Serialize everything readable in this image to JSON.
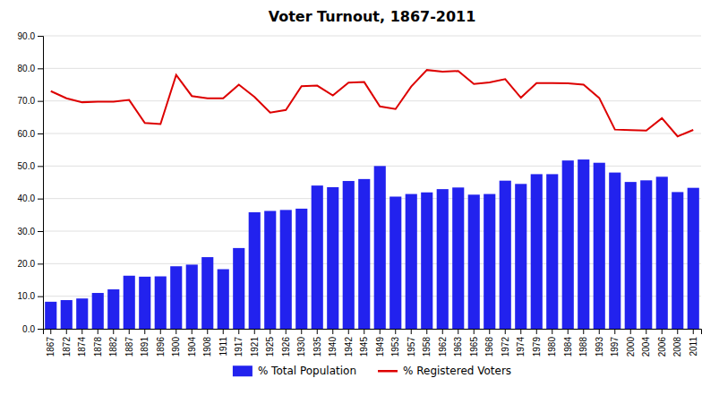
{
  "chart_data": {
    "type": "bar",
    "title": "Voter Turnout, 1867-2011",
    "categories": [
      "1867",
      "1872",
      "1874",
      "1878",
      "1882",
      "1887",
      "1891",
      "1896",
      "1900",
      "1904",
      "1908",
      "1911",
      "1917",
      "1921",
      "1925",
      "1926",
      "1930",
      "1935",
      "1940",
      "1942",
      "1945",
      "1949",
      "1953",
      "1957",
      "1958",
      "1962",
      "1963",
      "1965",
      "1968",
      "1972",
      "1974",
      "1979",
      "1980",
      "1984",
      "1988",
      "1993",
      "1997",
      "2000",
      "2004",
      "2006",
      "2008",
      "2011"
    ],
    "series": [
      {
        "name": "% Total Population",
        "type": "bar",
        "color": "#2222EE",
        "values": [
          8.3,
          8.8,
          9.3,
          11.0,
          12.1,
          16.3,
          16.0,
          16.1,
          19.2,
          19.7,
          22.0,
          18.3,
          24.8,
          35.8,
          36.2,
          36.5,
          36.9,
          44.0,
          43.5,
          45.4,
          46.0,
          50.0,
          40.6,
          41.4,
          41.9,
          42.9,
          43.4,
          41.2,
          41.4,
          45.5,
          44.5,
          47.5,
          47.5,
          51.7,
          52.0,
          51.0,
          48.0,
          45.1,
          45.6,
          46.7,
          42.0,
          43.3
        ]
      },
      {
        "name": "% Registered Voters",
        "type": "line",
        "color": "#DD0000",
        "values": [
          73.0,
          70.8,
          69.6,
          69.8,
          69.8,
          70.3,
          63.2,
          62.9,
          78.0,
          71.5,
          70.8,
          70.8,
          75.0,
          71.2,
          66.4,
          67.2,
          74.5,
          74.7,
          71.7,
          75.6,
          75.8,
          68.3,
          67.5,
          74.4,
          79.5,
          79.0,
          79.2,
          75.2,
          75.7,
          76.7,
          71.0,
          75.5,
          75.5,
          75.4,
          75.0,
          70.9,
          61.2,
          61.0,
          60.9,
          64.7,
          59.1,
          61.1
        ]
      }
    ],
    "ylim": [
      0,
      90
    ],
    "yticks": [
      {
        "value": 0,
        "label": "0.0"
      },
      {
        "value": 10,
        "label": "10.0"
      },
      {
        "value": 20,
        "label": "20.0"
      },
      {
        "value": 30,
        "label": "30.0"
      },
      {
        "value": 40,
        "label": "40.0"
      },
      {
        "value": 50,
        "label": "50.0"
      },
      {
        "value": 60,
        "label": "60.0"
      },
      {
        "value": 70,
        "label": "70.0"
      },
      {
        "value": 80,
        "label": "80.0"
      },
      {
        "value": 90,
        "label": "90.0"
      }
    ],
    "grid": true,
    "legend": "bottom"
  }
}
